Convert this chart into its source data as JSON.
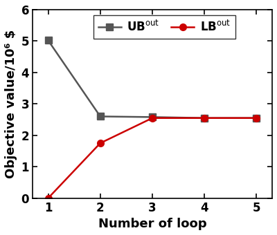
{
  "x": [
    1,
    2,
    3,
    4,
    5
  ],
  "UB_out": [
    5.02,
    2.6,
    2.58,
    2.55,
    2.55
  ],
  "LB_out": [
    0.0,
    1.75,
    2.55,
    2.55,
    2.55
  ],
  "UB_color": "#555555",
  "LB_color": "#cc0000",
  "xlabel": "Number of loop",
  "ylabel": "Objective value/10⁶ $",
  "xlim": [
    0.7,
    5.3
  ],
  "ylim": [
    0,
    6
  ],
  "yticks": [
    0,
    1,
    2,
    3,
    4,
    5,
    6
  ],
  "xticks": [
    1,
    2,
    3,
    4,
    5
  ],
  "linewidth": 1.8,
  "markersize": 7,
  "label_fontsize": 13,
  "tick_fontsize": 12,
  "legend_fontsize": 12,
  "background_color": "#ffffff"
}
